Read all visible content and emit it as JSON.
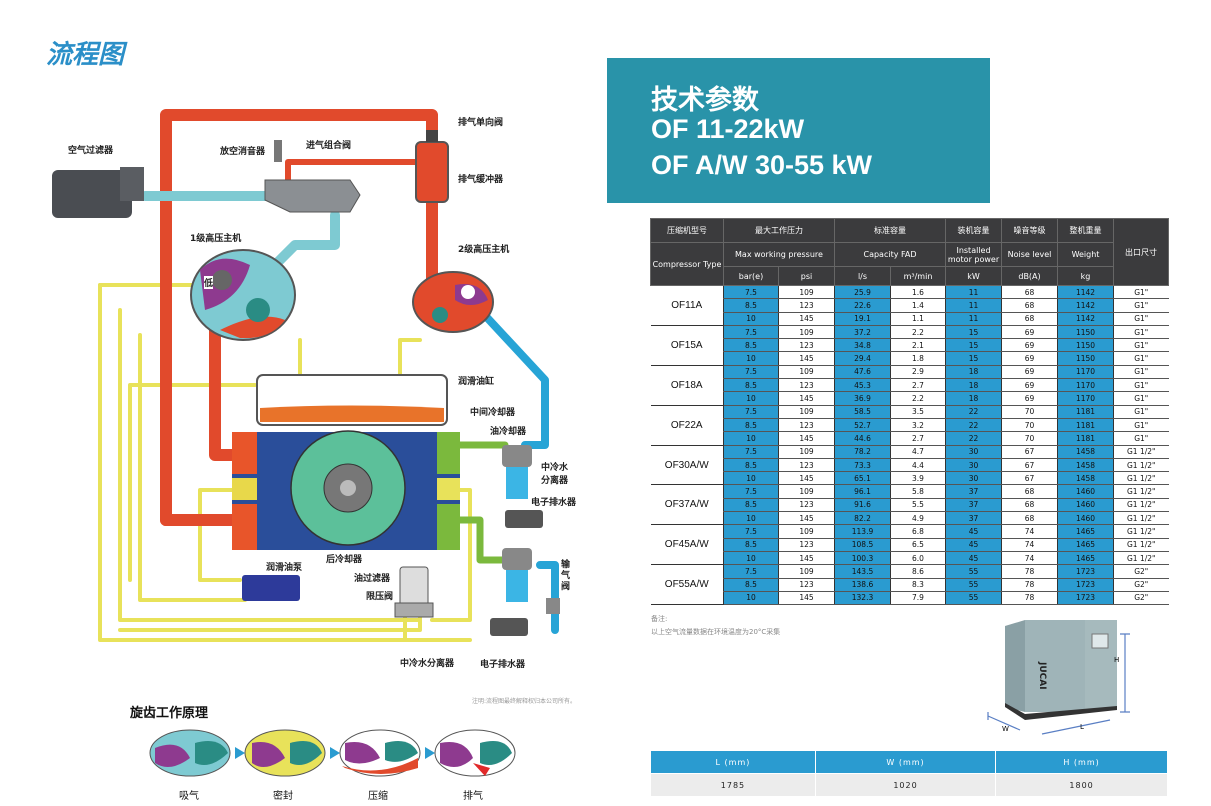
{
  "flow": {
    "title": "流程图",
    "labels": {
      "air_filter": "空气过滤器",
      "vent_silencer": "放空消音器",
      "intake_valve": "进气组合阀",
      "check_valve": "排气单向阀",
      "discharge_buffer": "排气缓冲器",
      "stage1": "1级高压主机",
      "stage2": "2级高压主机",
      "low": "低",
      "oil_tank": "润滑油缸",
      "intercooler": "中间冷却器",
      "oil_cooler": "油冷却器",
      "water_sep1": "中冷水\n分离器",
      "drain1": "电子排水器",
      "aftercooler": "后冷却器",
      "oil_pump": "润滑油泵",
      "oil_filter": "油过滤器",
      "pressure_limit": "限压阀",
      "outlet_valve": "输\n气\n阀",
      "water_sep2": "中冷水分离器",
      "drain2": "电子排水器"
    },
    "disclaimer": "注明:流程图最终解释权归本公司所有。"
  },
  "principle": {
    "title": "旋齿工作原理",
    "stages": [
      "吸气",
      "密封",
      "压缩",
      "排气"
    ]
  },
  "banner": {
    "line1": "技术参数",
    "line2": "OF 11-22kW",
    "line3": "OF A/W 30-55 kW"
  },
  "spec_table": {
    "headers_cn": [
      "压缩机型号",
      "最大工作压力",
      "标准容量",
      "装机容量",
      "噪音等级",
      "整机重量",
      "出口尺寸"
    ],
    "headers_en": [
      "Compressor Type",
      "Max working pressure",
      "Capacity FAD",
      "Installed motor power",
      "Noise level",
      "Weight"
    ],
    "units": [
      "bar(e)",
      "psi",
      "l/s",
      "m³/min",
      "kW",
      "dB(A)",
      "kg"
    ],
    "models": [
      {
        "type": "OF11A",
        "rows": [
          [
            "7.5",
            "109",
            "25.9",
            "1.6",
            "11",
            "68",
            "1142",
            "G1\""
          ],
          [
            "8.5",
            "123",
            "22.6",
            "1.4",
            "11",
            "68",
            "1142",
            "G1\""
          ],
          [
            "10",
            "145",
            "19.1",
            "1.1",
            "11",
            "68",
            "1142",
            "G1\""
          ]
        ]
      },
      {
        "type": "OF15A",
        "rows": [
          [
            "7.5",
            "109",
            "37.2",
            "2.2",
            "15",
            "69",
            "1150",
            "G1\""
          ],
          [
            "8.5",
            "123",
            "34.8",
            "2.1",
            "15",
            "69",
            "1150",
            "G1\""
          ],
          [
            "10",
            "145",
            "29.4",
            "1.8",
            "15",
            "69",
            "1150",
            "G1\""
          ]
        ]
      },
      {
        "type": "OF18A",
        "rows": [
          [
            "7.5",
            "109",
            "47.6",
            "2.9",
            "18",
            "69",
            "1170",
            "G1\""
          ],
          [
            "8.5",
            "123",
            "45.3",
            "2.7",
            "18",
            "69",
            "1170",
            "G1\""
          ],
          [
            "10",
            "145",
            "36.9",
            "2.2",
            "18",
            "69",
            "1170",
            "G1\""
          ]
        ]
      },
      {
        "type": "OF22A",
        "rows": [
          [
            "7.5",
            "109",
            "58.5",
            "3.5",
            "22",
            "70",
            "1181",
            "G1\""
          ],
          [
            "8.5",
            "123",
            "52.7",
            "3.2",
            "22",
            "70",
            "1181",
            "G1\""
          ],
          [
            "10",
            "145",
            "44.6",
            "2.7",
            "22",
            "70",
            "1181",
            "G1\""
          ]
        ]
      },
      {
        "type": "OF30A/W",
        "rows": [
          [
            "7.5",
            "109",
            "78.2",
            "4.7",
            "30",
            "67",
            "1458",
            "G1 1/2\""
          ],
          [
            "8.5",
            "123",
            "73.3",
            "4.4",
            "30",
            "67",
            "1458",
            "G1 1/2\""
          ],
          [
            "10",
            "145",
            "65.1",
            "3.9",
            "30",
            "67",
            "1458",
            "G1 1/2\""
          ]
        ]
      },
      {
        "type": "OF37A/W",
        "rows": [
          [
            "7.5",
            "109",
            "96.1",
            "5.8",
            "37",
            "68",
            "1460",
            "G1 1/2\""
          ],
          [
            "8.5",
            "123",
            "91.6",
            "5.5",
            "37",
            "68",
            "1460",
            "G1 1/2\""
          ],
          [
            "10",
            "145",
            "82.2",
            "4.9",
            "37",
            "68",
            "1460",
            "G1 1/2\""
          ]
        ]
      },
      {
        "type": "OF45A/W",
        "rows": [
          [
            "7.5",
            "109",
            "113.9",
            "6.8",
            "45",
            "74",
            "1465",
            "G1 1/2\""
          ],
          [
            "8.5",
            "123",
            "108.5",
            "6.5",
            "45",
            "74",
            "1465",
            "G1 1/2\""
          ],
          [
            "10",
            "145",
            "100.3",
            "6.0",
            "45",
            "74",
            "1465",
            "G1 1/2\""
          ]
        ]
      },
      {
        "type": "OF55A/W",
        "rows": [
          [
            "7.5",
            "109",
            "143.5",
            "8.6",
            "55",
            "78",
            "1723",
            "G2\""
          ],
          [
            "8.5",
            "123",
            "138.6",
            "8.3",
            "55",
            "78",
            "1723",
            "G2\""
          ],
          [
            "10",
            "145",
            "132.3",
            "7.9",
            "55",
            "78",
            "1723",
            "G2\""
          ]
        ]
      }
    ]
  },
  "notes": {
    "heading": "备注:",
    "text": "以上空气流量数据在环境温度为20°C采集"
  },
  "machine": {
    "brand": "JUCAI",
    "dim_labels": {
      "h": "H",
      "w": "W",
      "l": "L"
    }
  },
  "dims_table": {
    "headers": [
      "L (mm)",
      "W (mm)",
      "H (mm)"
    ],
    "values": [
      "1785",
      "1020",
      "1800"
    ]
  },
  "colors": {
    "banner": "#2993a9",
    "accent_blue": "#2a9bd0",
    "header_dark": "#3b3b3d",
    "title_blue": "#2b8fc8"
  }
}
